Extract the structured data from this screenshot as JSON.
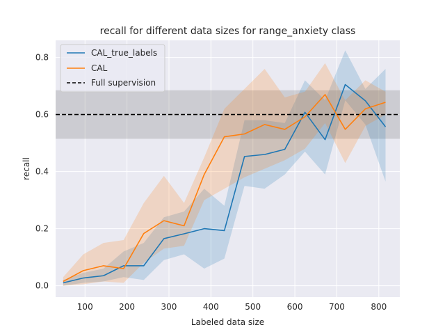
{
  "chart_data": {
    "type": "line",
    "title": "recall for different data sizes for range_anxiety class",
    "xlabel": "Labeled data size",
    "ylabel": "recall",
    "xlim": [
      30,
      850
    ],
    "ylim": [
      -0.04,
      0.86
    ],
    "xticks": [
      100,
      200,
      300,
      400,
      500,
      600,
      700,
      800
    ],
    "yticks": [
      0.0,
      0.2,
      0.4,
      0.6,
      0.8
    ],
    "xtick_labels": [
      "100",
      "200",
      "300",
      "400",
      "500",
      "600",
      "700",
      "800"
    ],
    "ytick_labels": [
      "0.0",
      "0.2",
      "0.4",
      "0.6",
      "0.8"
    ],
    "grid": true,
    "legend_position": "top-left",
    "x": [
      48,
      96,
      144,
      192,
      240,
      288,
      336,
      384,
      432,
      480,
      528,
      576,
      624,
      672,
      720,
      768,
      816
    ],
    "series": [
      {
        "name": "CAL_true_labels",
        "color": "#1f77b4",
        "values": [
          0.01,
          0.027,
          0.035,
          0.07,
          0.07,
          0.165,
          0.182,
          0.2,
          0.193,
          0.453,
          0.46,
          0.478,
          0.608,
          0.512,
          0.705,
          0.648,
          0.557
        ],
        "lower": [
          0.0,
          0.01,
          0.015,
          0.03,
          0.02,
          0.09,
          0.11,
          0.06,
          0.095,
          0.35,
          0.34,
          0.39,
          0.47,
          0.39,
          0.65,
          0.565,
          0.365
        ],
        "upper": [
          0.02,
          0.045,
          0.06,
          0.12,
          0.15,
          0.24,
          0.26,
          0.34,
          0.28,
          0.58,
          0.58,
          0.57,
          0.72,
          0.65,
          0.825,
          0.69,
          0.76
        ]
      },
      {
        "name": "CAL",
        "color": "#ff7f0e",
        "values": [
          0.015,
          0.053,
          0.07,
          0.06,
          0.183,
          0.228,
          0.21,
          0.39,
          0.522,
          0.532,
          0.565,
          0.548,
          0.592,
          0.67,
          0.548,
          0.62,
          0.643
        ],
        "lower": [
          0.0,
          0.005,
          0.015,
          0.01,
          0.08,
          0.13,
          0.14,
          0.3,
          0.34,
          0.38,
          0.41,
          0.44,
          0.48,
          0.57,
          0.43,
          0.56,
          0.6
        ],
        "upper": [
          0.03,
          0.11,
          0.15,
          0.16,
          0.29,
          0.385,
          0.29,
          0.45,
          0.62,
          0.69,
          0.76,
          0.66,
          0.68,
          0.78,
          0.65,
          0.72,
          0.68
        ]
      }
    ],
    "reference_line": {
      "name": "Full supervision",
      "value": 0.6,
      "band": [
        0.515,
        0.685
      ],
      "color": "#000000"
    }
  }
}
